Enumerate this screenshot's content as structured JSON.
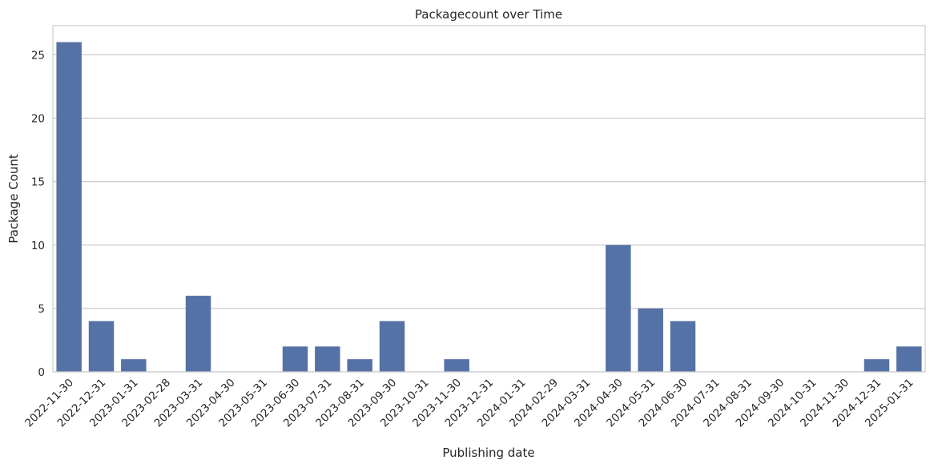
{
  "chart_data": {
    "type": "bar",
    "title": "Packagecount over Time",
    "xlabel": "Publishing date",
    "ylabel": "Package Count",
    "ylim": [
      0,
      27.3
    ],
    "yticks": [
      0,
      5,
      10,
      15,
      20,
      25
    ],
    "grid": "y",
    "bar_color": "#5572a6",
    "categories": [
      "2022-11-30",
      "2022-12-31",
      "2023-01-31",
      "2023-02-28",
      "2023-03-31",
      "2023-04-30",
      "2023-05-31",
      "2023-06-30",
      "2023-07-31",
      "2023-08-31",
      "2023-09-30",
      "2023-10-31",
      "2023-11-30",
      "2023-12-31",
      "2024-01-31",
      "2024-02-29",
      "2024-03-31",
      "2024-04-30",
      "2024-05-31",
      "2024-06-30",
      "2024-07-31",
      "2024-08-31",
      "2024-09-30",
      "2024-10-31",
      "2024-11-30",
      "2024-12-31",
      "2025-01-31"
    ],
    "values": [
      26,
      4,
      1,
      0,
      6,
      0,
      0,
      2,
      2,
      1,
      4,
      0,
      1,
      0,
      0,
      0,
      0,
      10,
      5,
      4,
      0,
      0,
      0,
      0,
      0,
      1,
      2
    ]
  }
}
